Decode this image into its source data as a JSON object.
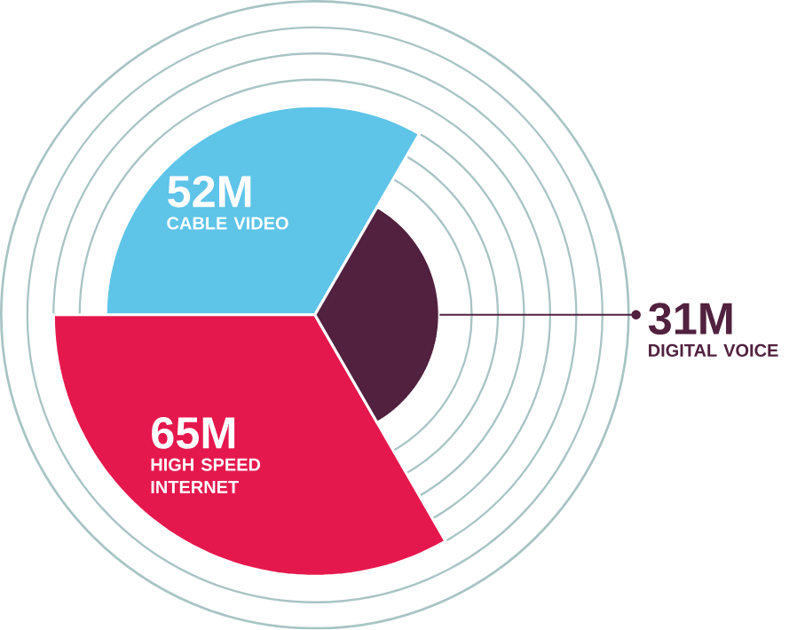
{
  "chart_data": {
    "type": "other",
    "categories": [
      "CABLE VIDEO",
      "HIGH SPEED INTERNET",
      "DIGITAL VOICE"
    ],
    "values": [
      52,
      65,
      31
    ],
    "value_labels": [
      "52M",
      "65M",
      "31M"
    ],
    "colors": [
      "#5ec4e8",
      "#e5184e",
      "#51213f"
    ]
  }
}
